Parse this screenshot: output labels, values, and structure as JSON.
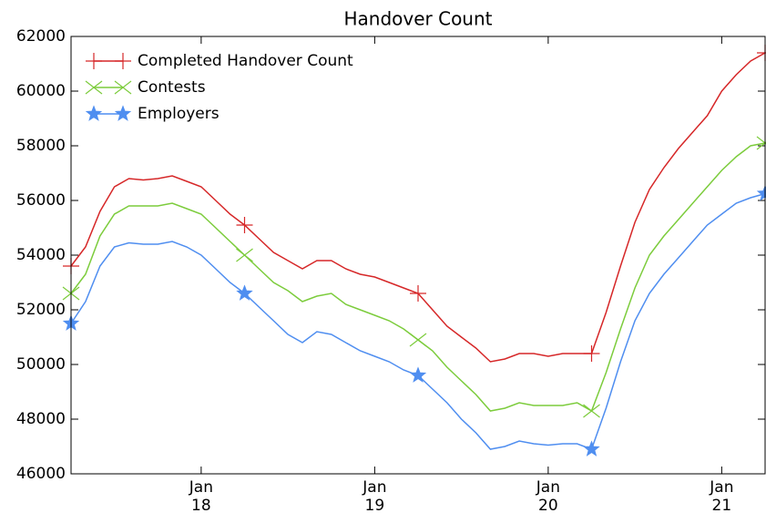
{
  "chart_data": {
    "type": "line",
    "title": "Handover Count",
    "x": [
      "2017-04",
      "2017-05",
      "2017-06",
      "2017-07",
      "2017-08",
      "2017-09",
      "2017-10",
      "2017-11",
      "2017-12",
      "2018-01",
      "2018-02",
      "2018-03",
      "2018-04",
      "2018-05",
      "2018-06",
      "2018-07",
      "2018-08",
      "2018-09",
      "2018-10",
      "2018-11",
      "2018-12",
      "2019-01",
      "2019-02",
      "2019-03",
      "2019-04",
      "2019-05",
      "2019-06",
      "2019-07",
      "2019-08",
      "2019-09",
      "2019-10",
      "2019-11",
      "2019-12",
      "2020-01",
      "2020-02",
      "2020-03",
      "2020-04",
      "2020-05",
      "2020-06",
      "2020-07",
      "2020-08",
      "2020-09",
      "2020-10",
      "2020-11",
      "2020-12",
      "2021-01",
      "2021-02",
      "2021-03",
      "2021-04"
    ],
    "series": [
      {
        "name": "Completed Handover Count",
        "color": "#d62728",
        "marker": "plus",
        "values": [
          53600,
          54300,
          55600,
          56500,
          56800,
          56750,
          56800,
          56900,
          56700,
          56500,
          56000,
          55500,
          55100,
          54600,
          54100,
          53800,
          53500,
          53800,
          53800,
          53500,
          53300,
          53200,
          53000,
          52800,
          52600,
          52000,
          51400,
          51000,
          50600,
          50100,
          50200,
          50400,
          50400,
          50300,
          50400,
          50400,
          50400,
          51900,
          53600,
          55200,
          56400,
          57200,
          57900,
          58500,
          59100,
          60000,
          60600,
          61100,
          61400
        ]
      },
      {
        "name": "Contests",
        "color": "#7ccc3c",
        "marker": "x",
        "values": [
          52600,
          53300,
          54700,
          55500,
          55800,
          55800,
          55800,
          55900,
          55700,
          55500,
          55000,
          54500,
          54000,
          53500,
          53000,
          52700,
          52300,
          52500,
          52600,
          52200,
          52000,
          51800,
          51600,
          51300,
          50900,
          50500,
          49900,
          49400,
          48900,
          48300,
          48400,
          48600,
          48500,
          48500,
          48500,
          48600,
          48300,
          49700,
          51300,
          52800,
          54000,
          54700,
          55300,
          55900,
          56500,
          57100,
          57600,
          58000,
          58100
        ]
      },
      {
        "name": "Employers",
        "color": "#4f8ef0",
        "marker": "star",
        "values": [
          51500,
          52300,
          53600,
          54300,
          54450,
          54400,
          54400,
          54500,
          54300,
          54000,
          53500,
          53000,
          52600,
          52100,
          51600,
          51100,
          50800,
          51200,
          51100,
          50800,
          50500,
          50300,
          50100,
          49800,
          49600,
          49100,
          48600,
          48000,
          47500,
          46900,
          47000,
          47200,
          47100,
          47050,
          47100,
          47100,
          46900,
          48400,
          50100,
          51600,
          52600,
          53300,
          53900,
          54500,
          55100,
          55500,
          55900,
          56100,
          56250
        ]
      }
    ],
    "markevery": 12,
    "xlim": [
      "2017-04",
      "2021-04"
    ],
    "xticks": [
      {
        "value": "2018-01",
        "label": "Jan\n18"
      },
      {
        "value": "2019-01",
        "label": "Jan\n19"
      },
      {
        "value": "2020-01",
        "label": "Jan\n20"
      },
      {
        "value": "2021-01",
        "label": "Jan\n21"
      }
    ],
    "ylim": [
      46000,
      62000
    ],
    "yticks": [
      46000,
      48000,
      50000,
      52000,
      54000,
      56000,
      58000,
      60000,
      62000
    ],
    "legend": "upper left"
  }
}
